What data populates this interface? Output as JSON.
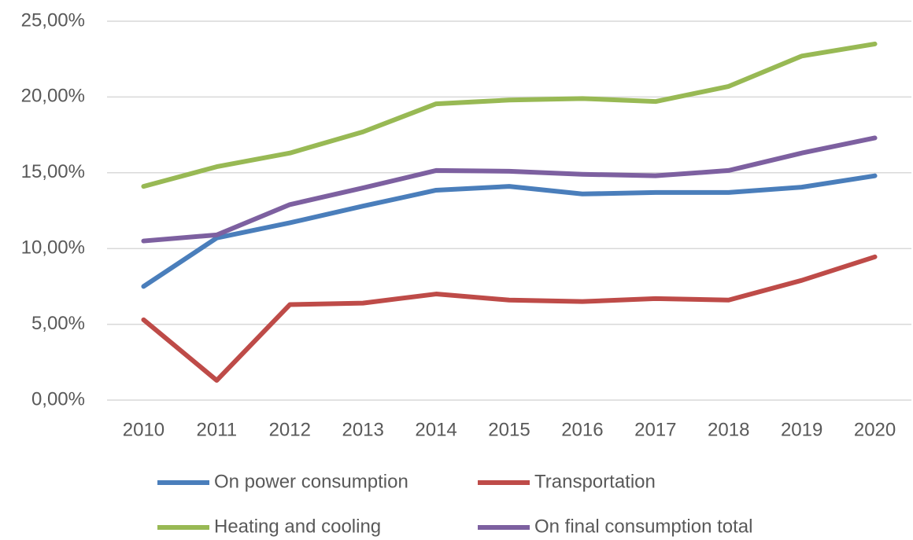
{
  "chart_data": {
    "type": "line",
    "categories": [
      "2010",
      "2011",
      "2012",
      "2013",
      "2014",
      "2015",
      "2016",
      "2017",
      "2018",
      "2019",
      "2020"
    ],
    "series": [
      {
        "name": "On power consumption",
        "color": "#4a7ebb",
        "values": [
          7.5,
          10.7,
          11.7,
          12.8,
          13.85,
          14.1,
          13.6,
          13.7,
          13.7,
          14.05,
          14.8
        ]
      },
      {
        "name": "Transportation",
        "color": "#be4b48",
        "values": [
          5.3,
          1.3,
          6.3,
          6.4,
          7.0,
          6.6,
          6.5,
          6.7,
          6.6,
          7.9,
          9.45
        ]
      },
      {
        "name": "Heating and cooling",
        "color": "#98b954",
        "values": [
          14.1,
          15.4,
          16.3,
          17.7,
          19.55,
          19.8,
          19.9,
          19.7,
          20.7,
          22.7,
          23.5
        ]
      },
      {
        "name": "On final consumption total",
        "color": "#7d60a0",
        "values": [
          10.5,
          10.9,
          12.9,
          14.0,
          15.15,
          15.1,
          14.9,
          14.8,
          15.15,
          16.3,
          17.3
        ]
      }
    ],
    "ylim": [
      0,
      25
    ],
    "yticks": [
      {
        "value": 0,
        "label": "0,00%"
      },
      {
        "value": 5,
        "label": "5,00%"
      },
      {
        "value": 10,
        "label": "10,00%"
      },
      {
        "value": 15,
        "label": "15,00%"
      },
      {
        "value": 20,
        "label": "20,00%"
      },
      {
        "value": 25,
        "label": "25,00%"
      }
    ],
    "grid": true,
    "legend": "bottom"
  }
}
